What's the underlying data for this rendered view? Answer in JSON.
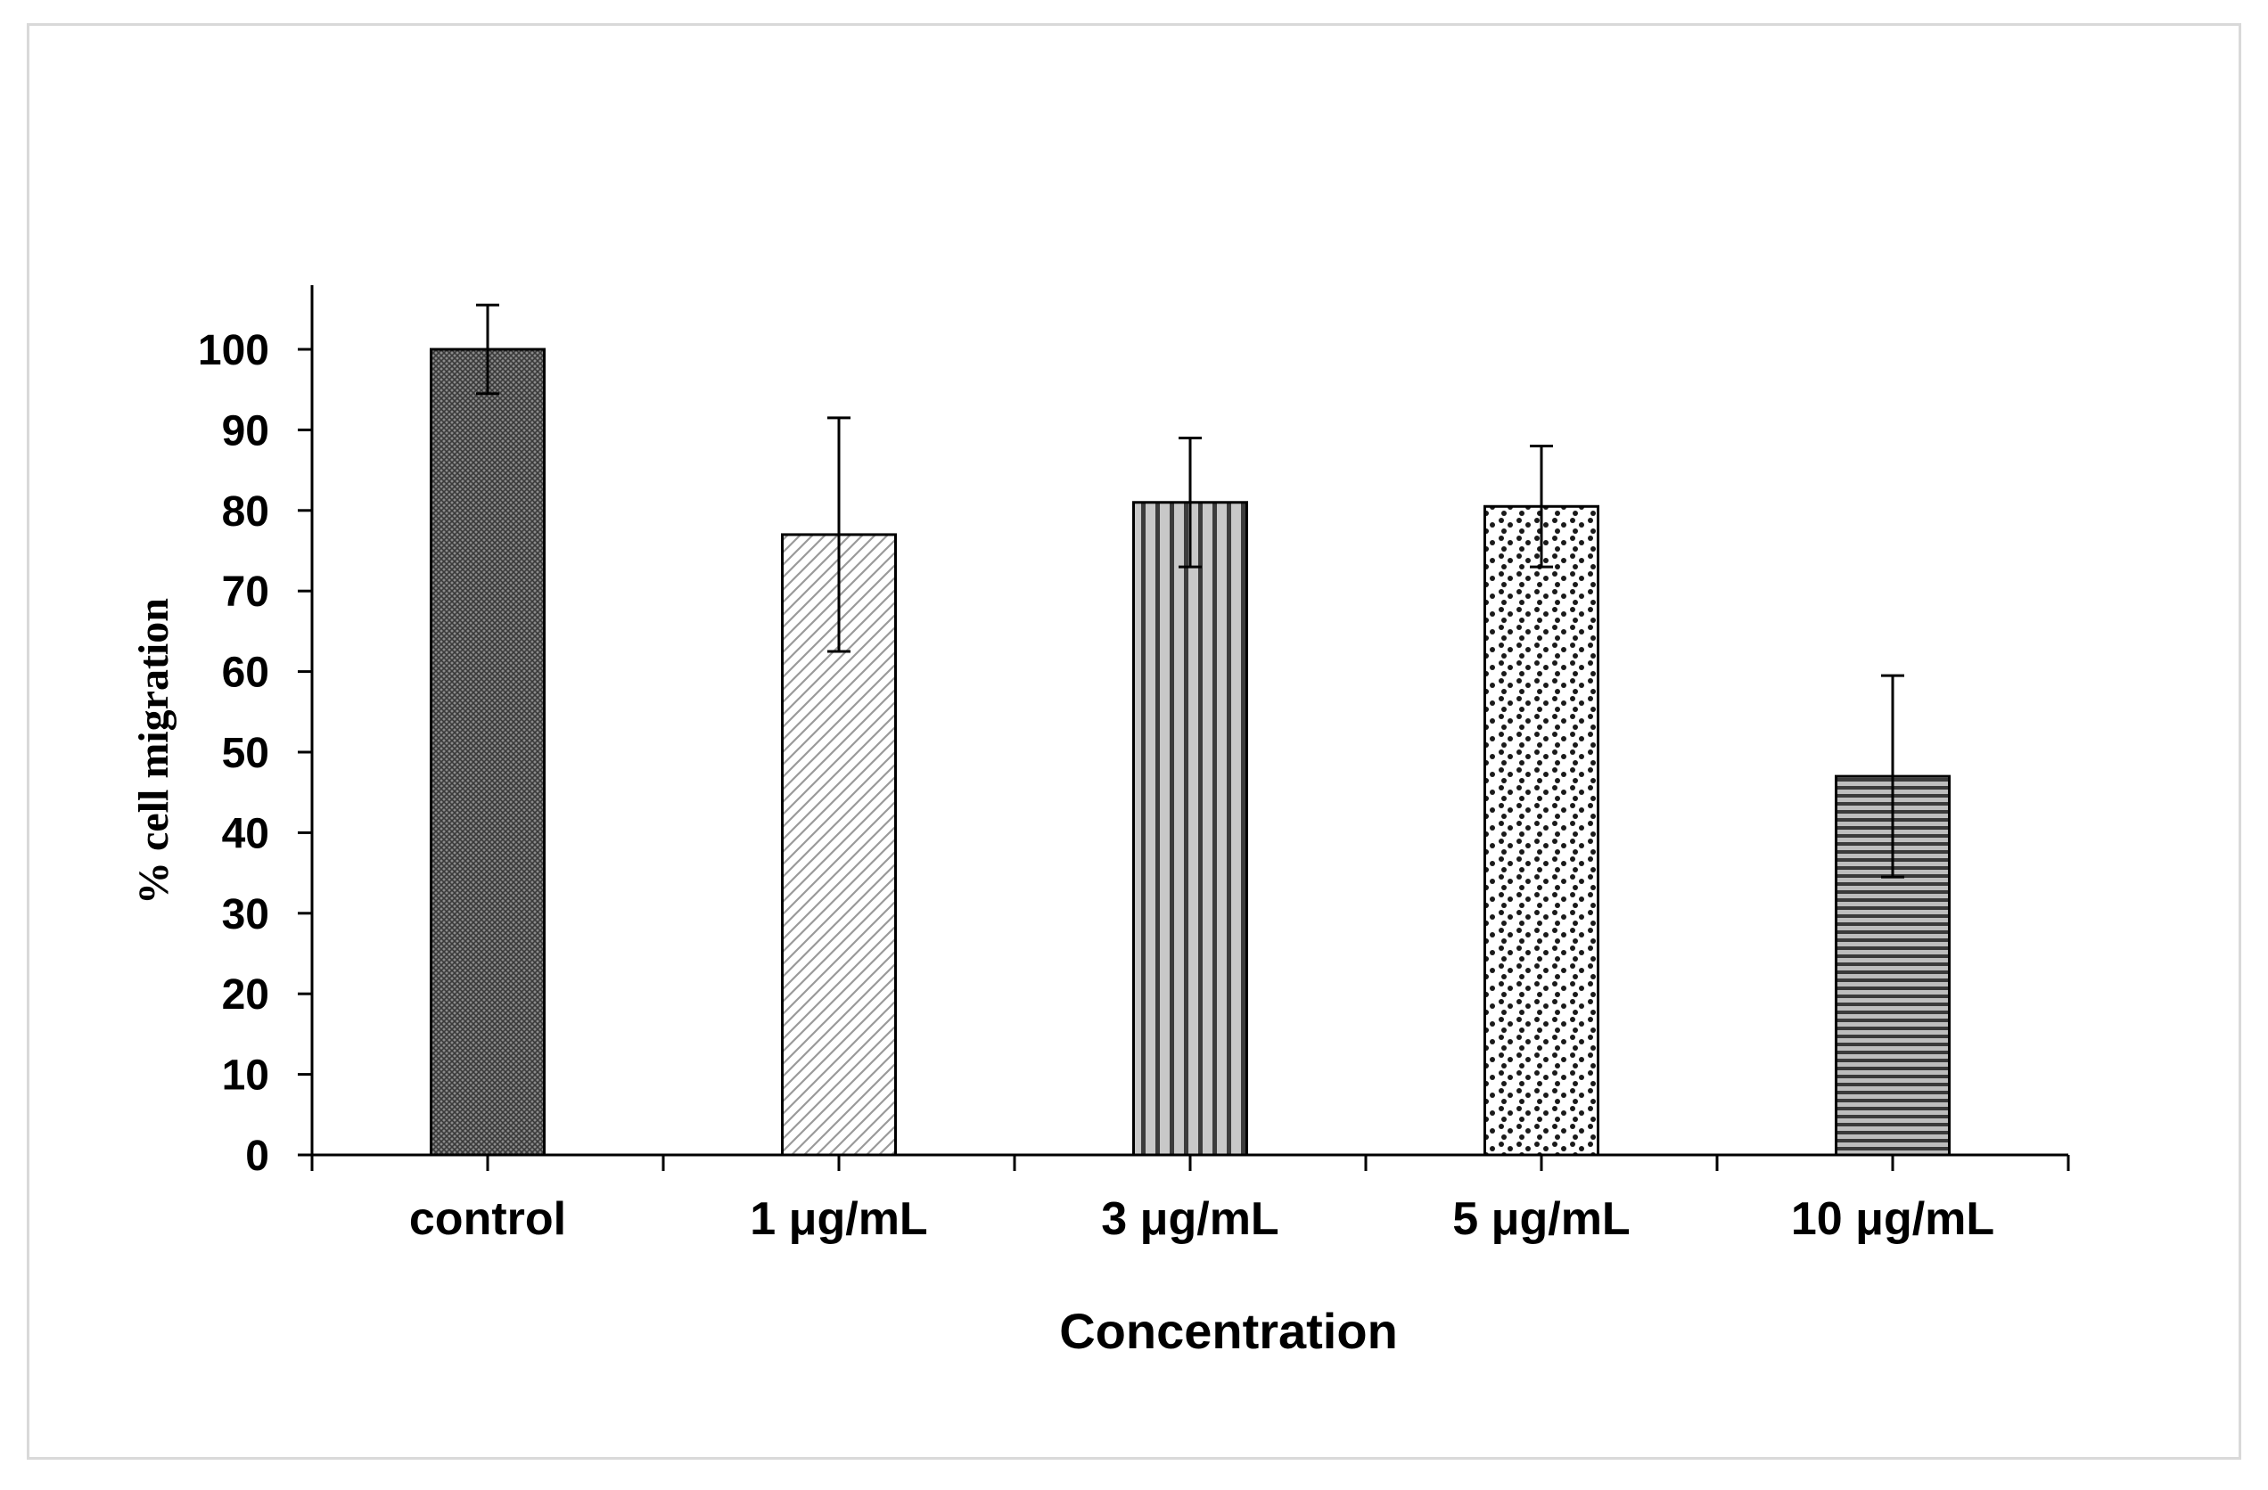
{
  "chart_data": {
    "type": "bar",
    "categories": [
      "control",
      "1 μg/mL",
      "3 μg/mL",
      "5 μg/mL",
      "10 μg/mL"
    ],
    "values": [
      100,
      77,
      81,
      80.5,
      47
    ],
    "errors": [
      5.5,
      14.5,
      8,
      7.5,
      12.5
    ],
    "patterns": [
      "crosshatch",
      "diagonal",
      "vertical",
      "dots",
      "horizontal"
    ],
    "title": "",
    "xlabel": "Concentration",
    "ylabel": "% cell migration",
    "ylim": [
      0,
      100
    ],
    "yticks": [
      "0",
      "10",
      "20",
      "30",
      "40",
      "50",
      "60",
      "70",
      "80",
      "90",
      "100"
    ],
    "grid": false,
    "legend": "none"
  }
}
